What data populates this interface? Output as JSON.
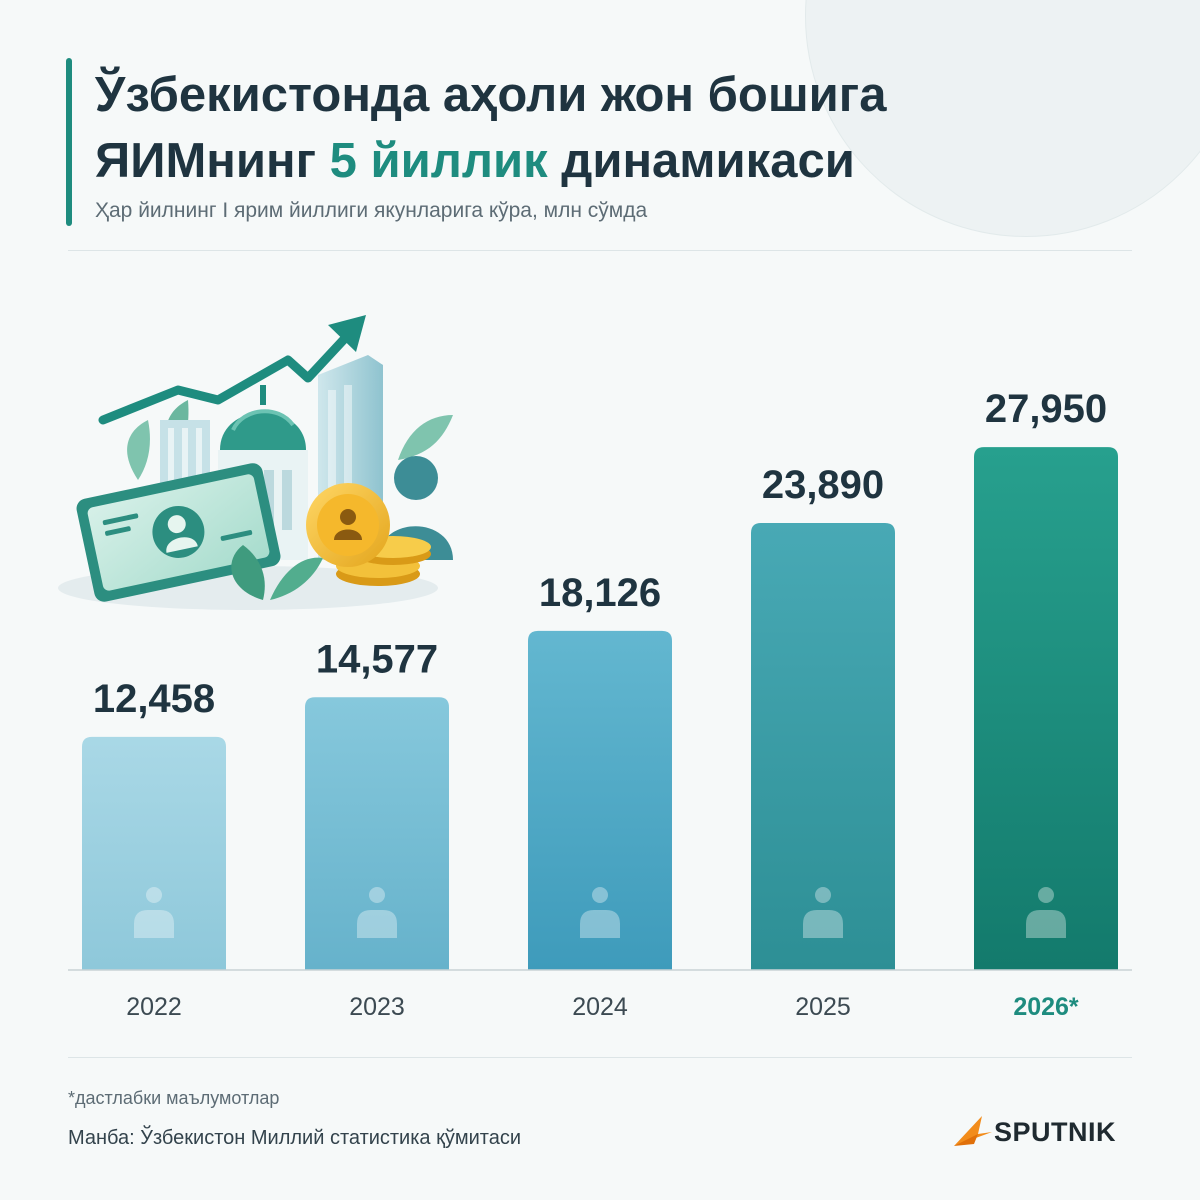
{
  "title": {
    "line1": "Ўзбекистонда аҳоли жон бошига",
    "line2_a": "ЯИМнинг ",
    "line2_highlight": "5 йиллик",
    "line2_b": " динамикаси"
  },
  "subtitle": "Ҳар йилнинг I ярим йиллиги якунларига кўра, млн сўмда",
  "footnote": "*дастлабки маълумотлар",
  "source": "Манба: Ўзбекистон Миллий статистика қўмитаси",
  "brand": "SPUTNIK",
  "colors": {
    "accent": "#1e8c7f",
    "text_dark": "#1f3440",
    "logo_orange": "#f28c1b"
  },
  "icons": {
    "illustration": "economy-growth-illustration",
    "bar_icon": "person-icon",
    "logo": "sputnik-logo-icon"
  },
  "chart_data": {
    "type": "bar",
    "categories": [
      "2022",
      "2023",
      "2024",
      "2025",
      "2026*"
    ],
    "values": [
      12458,
      14577,
      18126,
      23890,
      27950
    ],
    "value_labels": [
      "12,458",
      "14,577",
      "18,126",
      "23,890",
      "27,950"
    ],
    "highlighted_category": "2026*",
    "ylim": [
      0,
      31000
    ],
    "grid": false,
    "legend": "none",
    "bar_colors": [
      [
        "#a9d8e6",
        "#8ec8da"
      ],
      [
        "#86c8dc",
        "#66b2cb"
      ],
      [
        "#63b7d0",
        "#3e9bbb"
      ],
      [
        "#48a9b5",
        "#2d8f95"
      ],
      [
        "#27a08e",
        "#137a6c"
      ]
    ]
  }
}
